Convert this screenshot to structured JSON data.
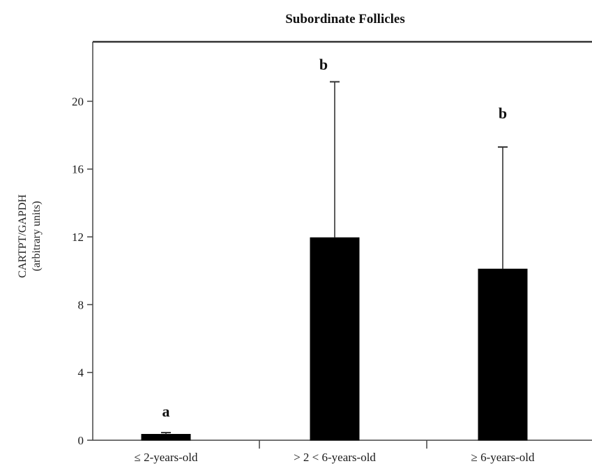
{
  "chart_data": {
    "type": "bar",
    "title": "Subordinate Follicles",
    "ylabel_line1": "CARTPT/GAPDH",
    "ylabel_line2": "(arbitrary units)",
    "xlabel": "",
    "categories": [
      "≤ 2-years-old",
      "> 2 < 6-years-old",
      "≥ 6-years-old"
    ],
    "values": [
      0.35,
      11.95,
      10.1
    ],
    "error_upper": [
      0.45,
      21.15,
      17.3
    ],
    "significance": [
      "a",
      "b",
      "b"
    ],
    "ylim": [
      0,
      22
    ],
    "yticks": [
      0,
      4,
      8,
      12,
      16,
      20
    ],
    "grid": false,
    "bar_color": "#000000",
    "axis_color": "#333333"
  }
}
